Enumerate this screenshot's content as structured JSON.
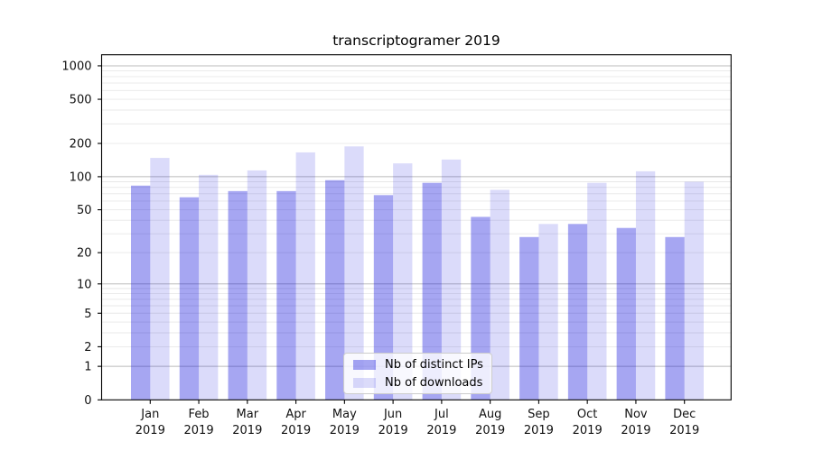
{
  "chart_data": {
    "type": "bar",
    "title": "transcriptogramer 2019",
    "categories": [
      "Jan",
      "Feb",
      "Mar",
      "Apr",
      "May",
      "Jun",
      "Jul",
      "Aug",
      "Sep",
      "Oct",
      "Nov",
      "Dec"
    ],
    "x_year_label": "2019",
    "series": [
      {
        "name": "Nb of distinct IPs",
        "values": [
          83,
          65,
          74,
          74,
          93,
          68,
          88,
          43,
          28,
          37,
          34,
          28
        ],
        "fill_alpha": 0.37
      },
      {
        "name": "Nb of downloads",
        "values": [
          148,
          104,
          114,
          166,
          188,
          132,
          143,
          76,
          37,
          88,
          112,
          90
        ],
        "fill_alpha": 0.15
      }
    ],
    "y_ticks": [
      0,
      1,
      2,
      5,
      10,
      20,
      50,
      100,
      200,
      500,
      1000
    ],
    "y_scale": "log1p",
    "ylim": [
      0,
      1250
    ],
    "xlabel": "",
    "ylabel": "",
    "grid": true,
    "legend_position": "lower center",
    "colors": {
      "bar_base": "#0d0ddc",
      "grid_major": "#bbbbbb",
      "grid_minor": "#e8e8e8",
      "axis": "#000000",
      "text": "#111111",
      "legend_border": "#cccccc",
      "legend_bg": "rgba(255,255,255,0.8)"
    }
  }
}
